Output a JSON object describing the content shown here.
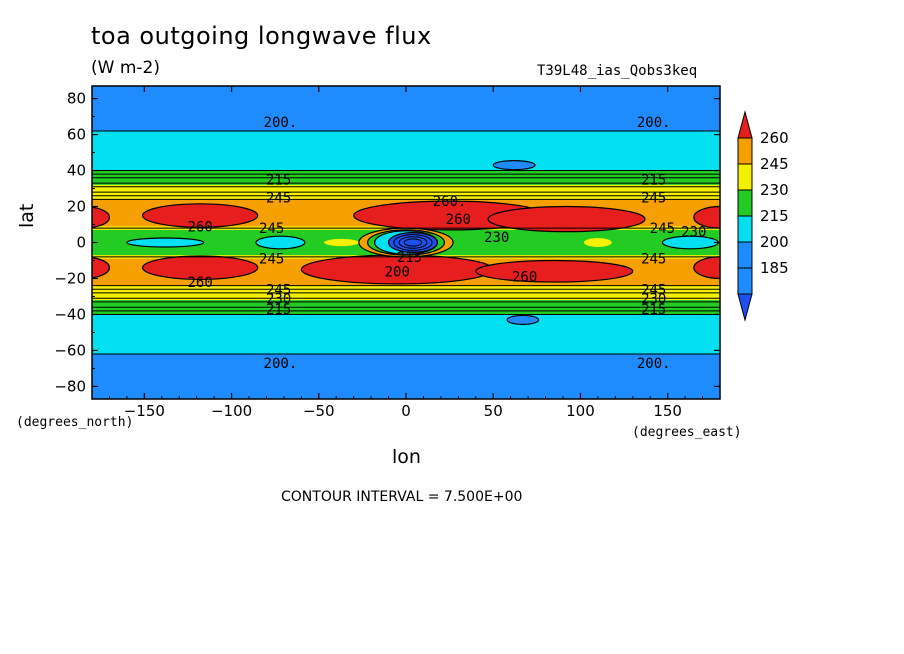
{
  "chart_data": {
    "type": "heatmap",
    "title": "toa outgoing longwave flux",
    "units": "(W m-2)",
    "experiment": "T39L48_ias_Qobs3keq",
    "xlabel": "lon",
    "ylabel": "lat",
    "x_units": "(degrees_east)",
    "y_units": "(degrees_north)",
    "xlim": [
      -180,
      180
    ],
    "ylim": [
      -87,
      87
    ],
    "x_ticks": [
      -150,
      -100,
      -50,
      0,
      50,
      100,
      150
    ],
    "y_ticks": [
      80,
      60,
      40,
      20,
      0,
      -20,
      -40,
      -60,
      -80
    ],
    "contour_interval_text": "CONTOUR INTERVAL = 7.500E+00",
    "colorbar": {
      "labels": [
        "260",
        "245",
        "230",
        "215",
        "200",
        "185"
      ],
      "colors": [
        "#e61e1e",
        "#f5a000",
        "#f5f000",
        "#22cc22",
        "#00e0f0",
        "#1e8cff"
      ]
    },
    "fill_colors": {
      "below_185": "#1e50f0",
      "185_200": "#1e8cff",
      "200_215": "#00e0f0",
      "215_230": "#22cc22",
      "230_245": "#f5f000",
      "245_260": "#f5a000",
      "above_260": "#e61e1e"
    },
    "contour_labels": [
      {
        "text": "200.",
        "lon": -72,
        "lat": 67
      },
      {
        "text": "200.",
        "lon": 142,
        "lat": 67
      },
      {
        "text": "215",
        "lon": -73,
        "lat": 35
      },
      {
        "text": "215",
        "lon": 142,
        "lat": 35
      },
      {
        "text": "245",
        "lon": -73,
        "lat": 25
      },
      {
        "text": "245",
        "lon": 142,
        "lat": 25
      },
      {
        "text": "260",
        "lon": -118,
        "lat": 9
      },
      {
        "text": "260.",
        "lon": 25,
        "lat": 23
      },
      {
        "text": "260",
        "lon": 30,
        "lat": 13
      },
      {
        "text": "245",
        "lon": -77,
        "lat": 8
      },
      {
        "text": "245",
        "lon": 147,
        "lat": 8
      },
      {
        "text": "230",
        "lon": 165,
        "lat": 6
      },
      {
        "text": "230",
        "lon": 52,
        "lat": 3
      },
      {
        "text": "245",
        "lon": -77,
        "lat": -9
      },
      {
        "text": "245",
        "lon": 142,
        "lat": -9
      },
      {
        "text": "215",
        "lon": 2,
        "lat": -8
      },
      {
        "text": "200",
        "lon": -5,
        "lat": -16
      },
      {
        "text": "260",
        "lon": -118,
        "lat": -22
      },
      {
        "text": "260",
        "lon": 68,
        "lat": -19
      },
      {
        "text": "245",
        "lon": -73,
        "lat": -26
      },
      {
        "text": "245",
        "lon": 142,
        "lat": -26
      },
      {
        "text": "230",
        "lon": -73,
        "lat": -31
      },
      {
        "text": "230",
        "lon": 142,
        "lat": -31
      },
      {
        "text": "215",
        "lon": -73,
        "lat": -37
      },
      {
        "text": "215",
        "lon": 142,
        "lat": -37
      },
      {
        "text": "200.",
        "lon": -72,
        "lat": -67
      },
      {
        "text": "200.",
        "lon": 142,
        "lat": -67
      }
    ]
  }
}
